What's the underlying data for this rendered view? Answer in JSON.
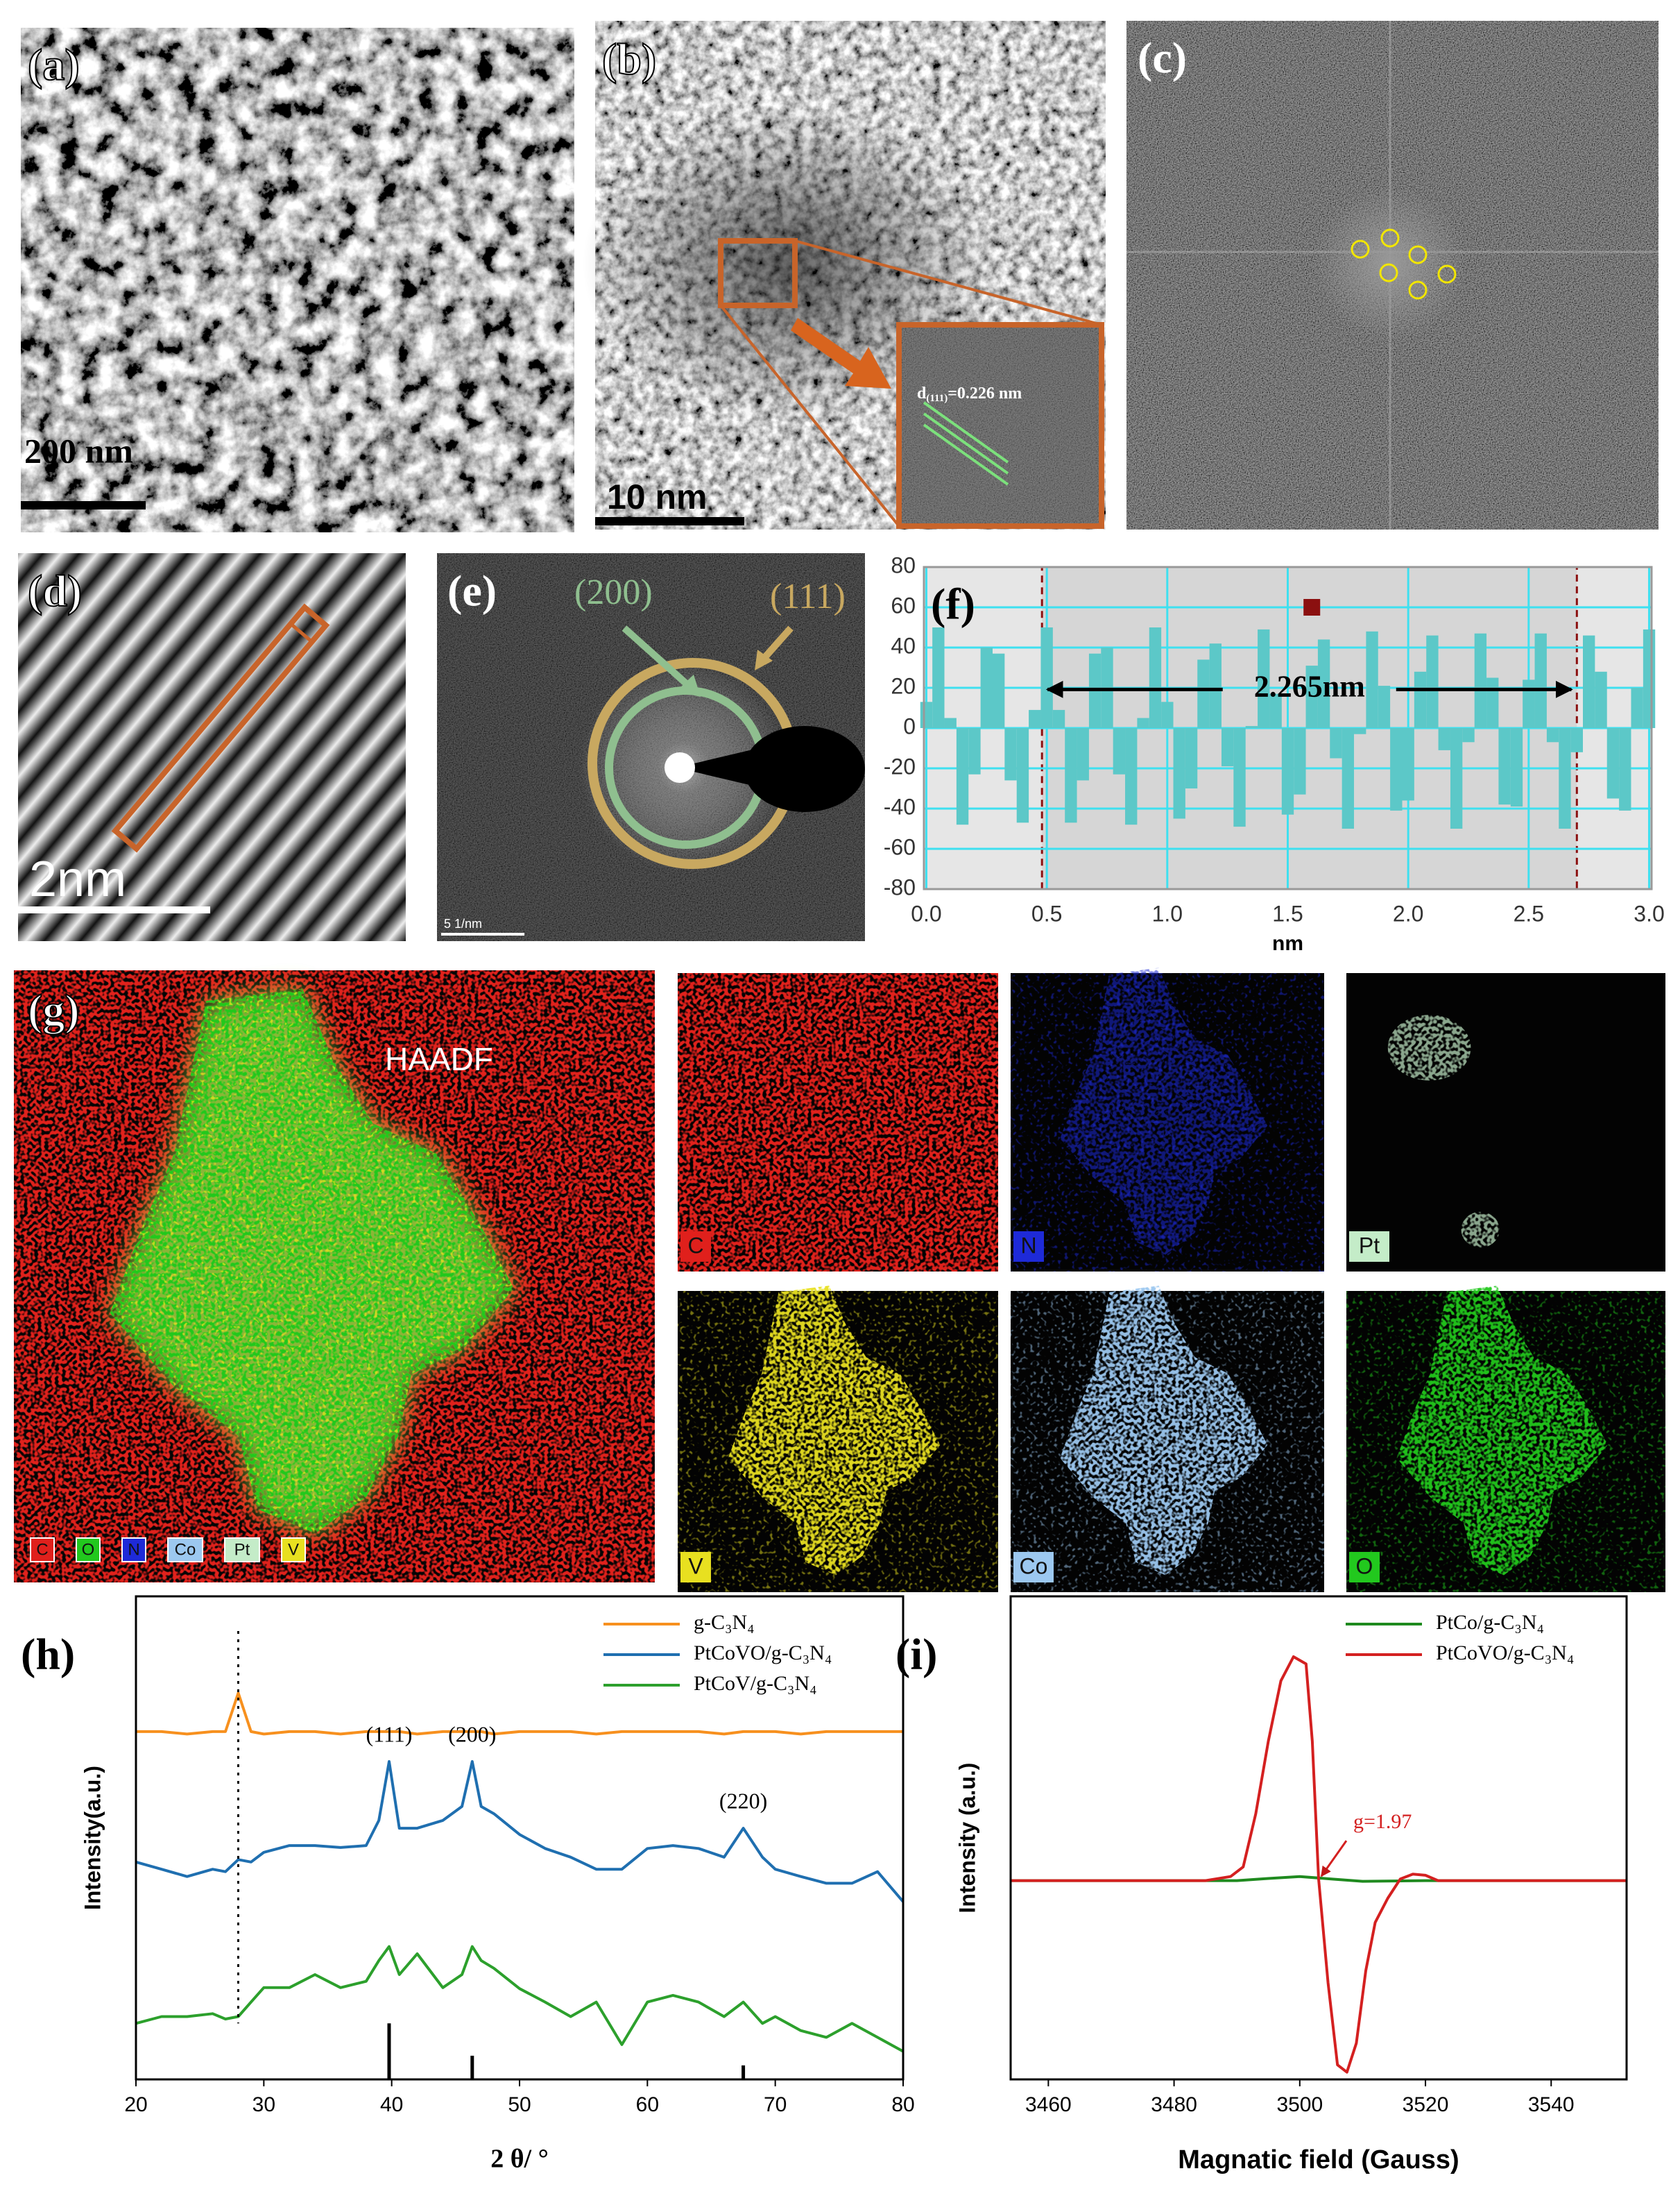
{
  "panels": {
    "a": {
      "label": "(a)",
      "scale_bar": "200 nm"
    },
    "b": {
      "label": "(b)",
      "scale_bar": "10 nm",
      "d_spacing": {
        "symbol": "d",
        "index": "(111)",
        "value": "=0.226 nm"
      }
    },
    "c": {
      "label": "(c)"
    },
    "d": {
      "label": "(d)",
      "scale_bar": "2nm"
    },
    "e": {
      "label": "(e)",
      "rings": [
        "(200)",
        "(111)"
      ],
      "scale_bar": "5 1/nm"
    },
    "g": {
      "label": "(g)",
      "title": "HAADF",
      "legend": [
        {
          "element": "C",
          "color": "#e0201c"
        },
        {
          "element": "O",
          "color": "#22c81e"
        },
        {
          "element": "N",
          "color": "#1e2ad8"
        },
        {
          "element": "Co",
          "color": "#9cc8f0"
        },
        {
          "element": "Pt",
          "color": "#c4ecc8"
        },
        {
          "element": "V",
          "color": "#e8e020"
        }
      ],
      "maps": [
        {
          "element": "C",
          "color": "#e0201c"
        },
        {
          "element": "N",
          "color": "#1e2ad8"
        },
        {
          "element": "Pt",
          "color": "#c4ecc8"
        },
        {
          "element": "V",
          "color": "#e8e020"
        },
        {
          "element": "Co",
          "color": "#9cc8f0"
        },
        {
          "element": "O",
          "color": "#22c81e"
        }
      ]
    }
  },
  "chart_data": [
    {
      "type": "bar",
      "panel_label": "(f)",
      "color": "#5cc8c8",
      "x": [
        0,
        0.05,
        0.1,
        0.15,
        0.2,
        0.25,
        0.3,
        0.35,
        0.4,
        0.45,
        0.5,
        0.55,
        0.6,
        0.65,
        0.7,
        0.75,
        0.8,
        0.85,
        0.9,
        0.95,
        1,
        1.05,
        1.1,
        1.15,
        1.2,
        1.25,
        1.3,
        1.35,
        1.4,
        1.45,
        1.5,
        1.55,
        1.6,
        1.65,
        1.7,
        1.75,
        1.8,
        1.85,
        1.9,
        1.95,
        2,
        2.05,
        2.1,
        2.15,
        2.2,
        2.25,
        2.3,
        2.35,
        2.4,
        2.45,
        2.5,
        2.55,
        2.6,
        2.65,
        2.7,
        2.75,
        2.8,
        2.85,
        2.9,
        2.95,
        3
      ],
      "values": [
        13,
        50,
        5,
        -48,
        -23,
        40,
        37,
        -26,
        -47,
        9,
        50,
        9,
        -47,
        -26,
        37,
        40,
        -23,
        -48,
        5,
        50,
        13,
        -45,
        -30,
        34,
        42,
        -19,
        -49,
        1,
        49,
        17,
        -43,
        -33,
        31,
        44,
        -15,
        -50,
        -3,
        48,
        21,
        -41,
        -36,
        28,
        46,
        -11,
        -50,
        -7,
        47,
        25,
        -38,
        -39,
        24,
        47,
        -7,
        -50,
        -12,
        46,
        28,
        -35,
        -41,
        20,
        49
      ],
      "xlim": [
        -0.01,
        3.01
      ],
      "ylim": [
        -80,
        80
      ],
      "xticks": [
        {
          "value": 0,
          "label": "0.0"
        },
        0.5,
        {
          "value": 1,
          "label": "1.0"
        },
        1.5,
        {
          "value": 2,
          "label": "2.0"
        },
        2.5,
        {
          "value": 3,
          "label": "3.0"
        }
      ],
      "yticks": [
        -80,
        -60,
        -40,
        -20,
        0,
        20,
        40,
        60,
        80
      ],
      "grid": true,
      "grid_color": "#3ee0f0",
      "xlabel": "nm",
      "annotation": "2.265nm",
      "highlight_x": [
        0.48,
        2.7
      ],
      "marker": {
        "x": 1.6,
        "y": 60,
        "color": "#8b1010"
      }
    },
    {
      "type": "line",
      "panel_label": "(h)",
      "xlabel": "2 θ/ °",
      "ylabel": "Intensity(a.u.)",
      "x": [
        20,
        22,
        24,
        26,
        27,
        28,
        29,
        30,
        32,
        34,
        36,
        38,
        39,
        39.8,
        40.6,
        42,
        44,
        45.5,
        46.3,
        47,
        48,
        50,
        52,
        54,
        56,
        58,
        60,
        62,
        64,
        66,
        67.5,
        69,
        70,
        72,
        74,
        76,
        78,
        80
      ],
      "series": [
        {
          "name": "g-C₃N₄",
          "color": "#f7901e",
          "values": [
            72,
            72,
            71.5,
            72,
            72,
            80,
            72,
            71.5,
            72,
            72,
            71.5,
            72,
            72,
            72,
            72,
            71.5,
            72,
            72,
            72,
            72,
            71.5,
            72,
            72,
            72,
            71.5,
            72,
            72,
            72,
            72,
            71.5,
            72,
            72,
            72,
            71.5,
            72,
            72,
            72,
            72
          ]
        },
        {
          "name": "PtCoVO/g-C₃N₄",
          "color": "#1f6fb0",
          "values": [
            45,
            43.5,
            42,
            43.5,
            43,
            45.5,
            45,
            47,
            48.4,
            48.4,
            48,
            48.4,
            53.6,
            65.8,
            52,
            52,
            53.6,
            56.5,
            65.8,
            56.5,
            55,
            50.7,
            47.8,
            46,
            43.5,
            43.5,
            47.8,
            48.4,
            47.8,
            46,
            52,
            46,
            43.5,
            42,
            40.6,
            40.6,
            43,
            36.8
          ]
        },
        {
          "name": "PtCoV/g-C₃N₄",
          "color": "#2ca02c",
          "values": [
            11.6,
            13,
            13,
            13.6,
            12.5,
            13,
            16,
            19,
            19,
            21.7,
            19,
            20.3,
            24.6,
            27.5,
            21.7,
            26,
            19,
            21.7,
            27.5,
            24.6,
            23,
            18.8,
            16,
            13,
            16,
            7.2,
            16,
            17.4,
            16,
            13,
            16,
            11.6,
            13,
            10.1,
            8.7,
            11.6,
            8.7,
            5.8
          ]
        }
      ],
      "reference": {
        "x": [
          39.8,
          46.3,
          67.5
        ],
        "values": [
          11.6,
          4.9,
          2.9
        ],
        "color": "#000000"
      },
      "peak_labels": [
        "(111)",
        "(200)",
        "(220)"
      ],
      "dashed_line_x": 28,
      "xlim": [
        20,
        80
      ],
      "ylim": [
        0,
        100
      ],
      "xticks": [
        20,
        30,
        40,
        50,
        60,
        70,
        80
      ]
    },
    {
      "type": "line",
      "panel_label": "(i)",
      "xlabel": "Magnatic field (Gauss)",
      "ylabel": "Intensity (a.u.)",
      "series": [
        {
          "name": "PtCo/g-C₃N₄",
          "color": "#1f8a1f",
          "x": [
            3454,
            3490,
            3495,
            3500,
            3505,
            3510,
            3520,
            3552
          ],
          "values": [
            -17.7,
            -17.7,
            -16.8,
            -16,
            -17,
            -18,
            -17.7,
            -17.7
          ]
        },
        {
          "name": "PtCoVO/g-C₃N₄",
          "color": "#d42020",
          "x": [
            3454,
            3485,
            3489,
            3491,
            3493,
            3495,
            3497,
            3499,
            3501,
            3502,
            3503,
            3504.5,
            3506,
            3507.5,
            3509,
            3510.5,
            3512,
            3514,
            3516,
            3518,
            3520,
            3522,
            3552
          ],
          "values": [
            -17.7,
            -17.7,
            -16,
            -12,
            10,
            40,
            65,
            75,
            72,
            40,
            -17,
            -60,
            -94,
            -97,
            -85,
            -55,
            -35,
            -25,
            -17,
            -15,
            -15.5,
            -17.7,
            -17.7
          ]
        }
      ],
      "annotation": {
        "text": "g=1.97",
        "x": 3503,
        "color": "#d42020"
      },
      "xlim": [
        3454,
        3552
      ],
      "ylim": [
        -100,
        100
      ],
      "xticks": [
        3460,
        3480,
        3500,
        3520,
        3540
      ]
    }
  ]
}
